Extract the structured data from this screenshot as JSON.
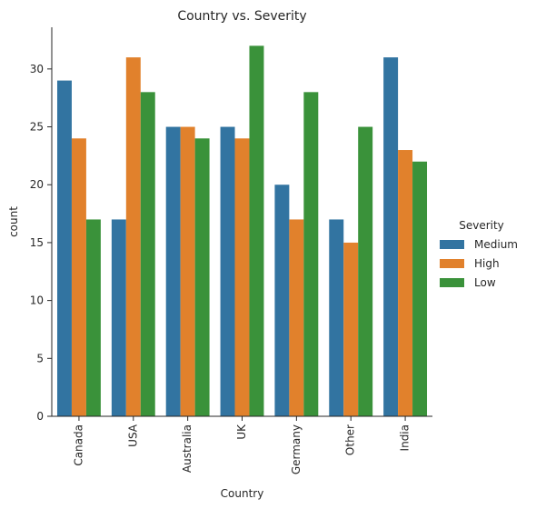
{
  "chart_data": {
    "type": "bar",
    "title": "Country vs. Severity",
    "xlabel": "Country",
    "ylabel": "count",
    "categories": [
      "Canada",
      "USA",
      "Australia",
      "UK",
      "Germany",
      "Other",
      "India"
    ],
    "series": [
      {
        "name": "Medium",
        "values": [
          29,
          17,
          25,
          25,
          20,
          17,
          31
        ],
        "color": "#3274a1"
      },
      {
        "name": "High",
        "values": [
          24,
          31,
          25,
          24,
          17,
          15,
          23
        ],
        "color": "#e1812c"
      },
      {
        "name": "Low",
        "values": [
          17,
          28,
          24,
          32,
          28,
          25,
          22
        ],
        "color": "#3a923a"
      }
    ],
    "ylim": [
      0,
      33.6
    ],
    "yticks": [
      0,
      5,
      10,
      15,
      20,
      25,
      30
    ],
    "legend": {
      "title": "Severity",
      "placement": "right"
    },
    "grid": false
  }
}
